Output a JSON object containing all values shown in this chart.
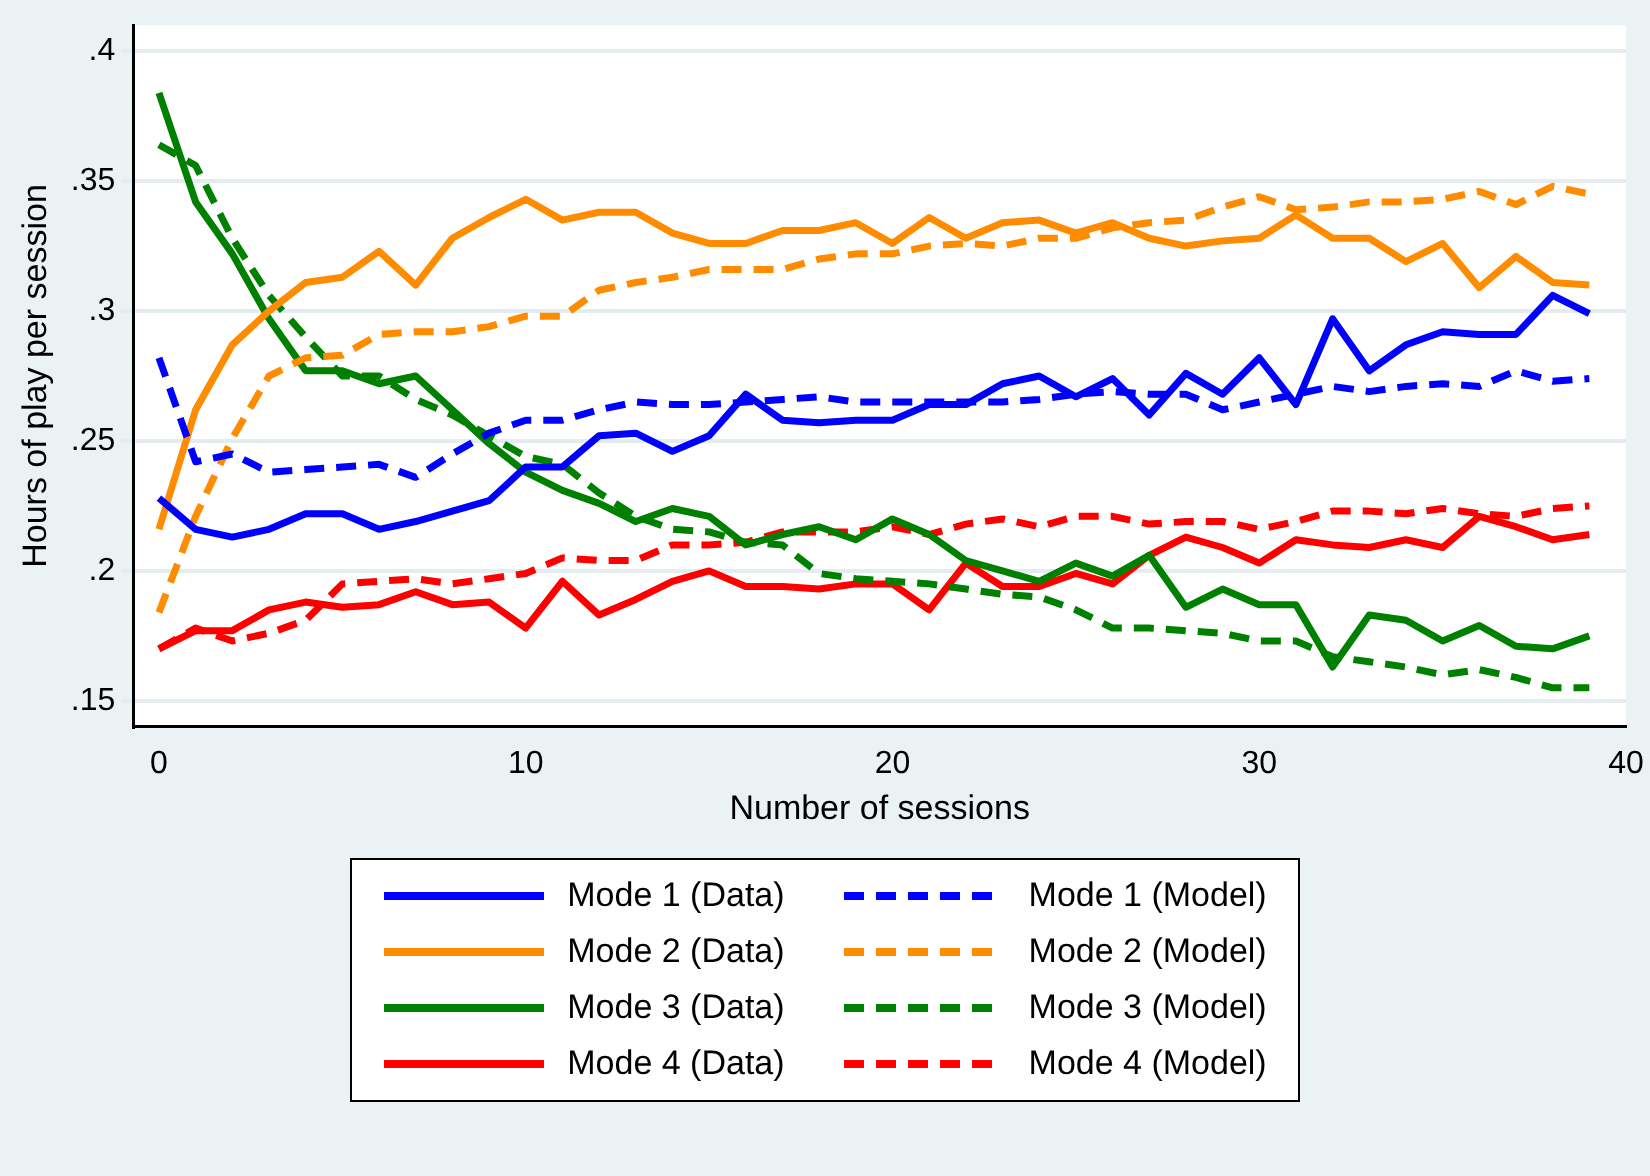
{
  "chart_data": {
    "type": "line",
    "xlabel": "Number of sessions",
    "ylabel": "Hours of play per session",
    "x": [
      0,
      1,
      2,
      3,
      4,
      5,
      6,
      7,
      8,
      9,
      10,
      11,
      12,
      13,
      14,
      15,
      16,
      17,
      18,
      19,
      20,
      21,
      22,
      23,
      24,
      25,
      26,
      27,
      28,
      29,
      30,
      31,
      32,
      33,
      34,
      35,
      36,
      37,
      38,
      39
    ],
    "xlim": [
      -0.7,
      40
    ],
    "xticks": [
      0,
      10,
      20,
      30,
      40
    ],
    "ylim": [
      0.14,
      0.41
    ],
    "yticks": [
      {
        "value": 0.15,
        "label": ".15"
      },
      {
        "value": 0.2,
        "label": ".2"
      },
      {
        "value": 0.25,
        "label": ".25"
      },
      {
        "value": 0.3,
        "label": ".3"
      },
      {
        "value": 0.35,
        "label": ".35"
      },
      {
        "value": 0.4,
        "label": ".4"
      }
    ],
    "grid": "y",
    "legend": "bottom",
    "marker": "none",
    "series": [
      {
        "name": "Mode 1 (Data)",
        "color": "#0000ff",
        "line_style": "solid",
        "values": [
          0.228,
          0.216,
          0.213,
          0.216,
          0.222,
          0.222,
          0.216,
          0.219,
          0.223,
          0.227,
          0.24,
          0.24,
          0.252,
          0.253,
          0.246,
          0.252,
          0.268,
          0.258,
          0.257,
          0.258,
          0.258,
          0.264,
          0.264,
          0.272,
          0.275,
          0.267,
          0.274,
          0.26,
          0.276,
          0.268,
          0.282,
          0.264,
          0.297,
          0.277,
          0.287,
          0.292,
          0.291,
          0.291,
          0.306,
          0.299
        ]
      },
      {
        "name": "Mode 1 (Model)",
        "color": "#0000ff",
        "line_style": "dashed",
        "values": [
          0.282,
          0.242,
          0.245,
          0.238,
          0.239,
          0.24,
          0.241,
          0.236,
          0.245,
          0.253,
          0.258,
          0.258,
          0.262,
          0.265,
          0.264,
          0.264,
          0.265,
          0.266,
          0.267,
          0.265,
          0.265,
          0.265,
          0.265,
          0.265,
          0.266,
          0.268,
          0.269,
          0.268,
          0.268,
          0.262,
          0.265,
          0.268,
          0.271,
          0.269,
          0.271,
          0.272,
          0.271,
          0.277,
          0.273,
          0.274
        ]
      },
      {
        "name": "Mode 2 (Data)",
        "color": "#ff8c00",
        "line_style": "solid",
        "values": [
          0.216,
          0.262,
          0.287,
          0.3,
          0.311,
          0.313,
          0.323,
          0.31,
          0.328,
          0.336,
          0.343,
          0.335,
          0.338,
          0.338,
          0.33,
          0.326,
          0.326,
          0.331,
          0.331,
          0.334,
          0.326,
          0.336,
          0.328,
          0.334,
          0.335,
          0.33,
          0.334,
          0.328,
          0.325,
          0.327,
          0.328,
          0.337,
          0.328,
          0.328,
          0.319,
          0.326,
          0.309,
          0.321,
          0.311,
          0.31
        ]
      },
      {
        "name": "Mode 2 (Model)",
        "color": "#ff8c00",
        "line_style": "dashed",
        "values": [
          0.184,
          0.221,
          0.251,
          0.275,
          0.282,
          0.283,
          0.291,
          0.292,
          0.292,
          0.294,
          0.298,
          0.298,
          0.308,
          0.311,
          0.313,
          0.316,
          0.316,
          0.316,
          0.32,
          0.322,
          0.322,
          0.325,
          0.326,
          0.325,
          0.328,
          0.328,
          0.332,
          0.334,
          0.335,
          0.34,
          0.344,
          0.339,
          0.34,
          0.342,
          0.342,
          0.343,
          0.346,
          0.341,
          0.348,
          0.345
        ]
      },
      {
        "name": "Mode 3 (Data)",
        "color": "#008000",
        "line_style": "solid",
        "values": [
          0.384,
          0.342,
          0.322,
          0.297,
          0.277,
          0.277,
          0.272,
          0.275,
          0.262,
          0.249,
          0.238,
          0.231,
          0.226,
          0.219,
          0.224,
          0.221,
          0.21,
          0.214,
          0.217,
          0.212,
          0.22,
          0.214,
          0.204,
          0.2,
          0.196,
          0.203,
          0.198,
          0.206,
          0.186,
          0.193,
          0.187,
          0.187,
          0.163,
          0.183,
          0.181,
          0.173,
          0.179,
          0.171,
          0.17,
          0.175
        ]
      },
      {
        "name": "Mode 3 (Model)",
        "color": "#008000",
        "line_style": "dashed",
        "values": [
          0.364,
          0.356,
          0.328,
          0.306,
          0.29,
          0.275,
          0.275,
          0.266,
          0.26,
          0.252,
          0.244,
          0.241,
          0.23,
          0.221,
          0.216,
          0.215,
          0.211,
          0.21,
          0.199,
          0.197,
          0.196,
          0.195,
          0.193,
          0.191,
          0.19,
          0.185,
          0.178,
          0.178,
          0.177,
          0.176,
          0.173,
          0.173,
          0.167,
          0.165,
          0.163,
          0.16,
          0.162,
          0.159,
          0.155,
          0.155
        ]
      },
      {
        "name": "Mode 4 (Data)",
        "color": "#ff0000",
        "line_style": "solid",
        "values": [
          0.17,
          0.177,
          0.177,
          0.185,
          0.188,
          0.186,
          0.187,
          0.192,
          0.187,
          0.188,
          0.178,
          0.196,
          0.183,
          0.189,
          0.196,
          0.2,
          0.194,
          0.194,
          0.193,
          0.195,
          0.195,
          0.185,
          0.203,
          0.194,
          0.194,
          0.199,
          0.195,
          0.206,
          0.213,
          0.209,
          0.203,
          0.212,
          0.21,
          0.209,
          0.212,
          0.209,
          0.221,
          0.217,
          0.212,
          0.214
        ]
      },
      {
        "name": "Mode 4 (Model)",
        "color": "#ff0000",
        "line_style": "dashed",
        "values": [
          0.17,
          0.178,
          0.173,
          0.176,
          0.181,
          0.195,
          0.196,
          0.197,
          0.195,
          0.197,
          0.199,
          0.205,
          0.204,
          0.204,
          0.21,
          0.21,
          0.211,
          0.215,
          0.215,
          0.215,
          0.217,
          0.214,
          0.218,
          0.22,
          0.217,
          0.221,
          0.221,
          0.218,
          0.219,
          0.219,
          0.216,
          0.219,
          0.223,
          0.223,
          0.222,
          0.224,
          0.222,
          0.221,
          0.224,
          0.225
        ]
      }
    ]
  }
}
